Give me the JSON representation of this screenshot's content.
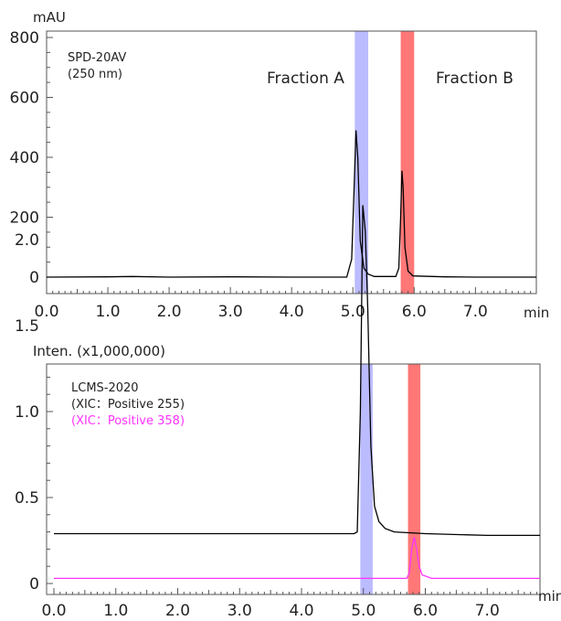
{
  "colors": {
    "trace": "#000000",
    "trace_358": "#ff33ff",
    "fraction_a": "#aaaaff",
    "fraction_b": "#ff5555"
  },
  "chart_data": [
    {
      "type": "line",
      "ylabel": "mAU",
      "xlabel": "min",
      "instrument": "SPD-20AV",
      "wavelength": "(250 nm)",
      "xlim": [
        0,
        8.0
      ],
      "ylim": [
        -50,
        830
      ],
      "x_ticks": [
        "0.0",
        "1.0",
        "2.0",
        "3.0",
        "4.0",
        "5.0",
        "6.0",
        "7.0"
      ],
      "y_ticks": [
        "0",
        "200",
        "400",
        "600",
        "800"
      ],
      "fractions": [
        {
          "label": "Fraction A",
          "start": 5.03,
          "end": 5.25
        },
        {
          "label": "Fraction B",
          "start": 5.78,
          "end": 6.0
        }
      ],
      "series": [
        {
          "x": [
            0,
            1.0,
            1.4,
            2.0,
            3.0,
            4.0,
            4.9,
            4.98,
            5.02,
            5.05,
            5.08,
            5.12,
            5.18,
            5.25,
            5.35,
            5.7,
            5.75,
            5.78,
            5.8,
            5.82,
            5.85,
            5.9,
            5.98,
            6.5,
            7.0,
            8.0
          ],
          "y": [
            0,
            1,
            2,
            0,
            1,
            0,
            0,
            60,
            300,
            490,
            400,
            120,
            30,
            10,
            2,
            2,
            30,
            200,
            355,
            300,
            100,
            20,
            4,
            1,
            0,
            0
          ]
        }
      ]
    },
    {
      "type": "line",
      "ylabel": "Inten. (x1,000,000)",
      "xlabel": "min",
      "instrument": "LCMS-2020",
      "xlim": [
        0,
        8.0
      ],
      "ylim": [
        -0.1,
        2.55
      ],
      "x_ticks": [
        "0.0",
        "1.0",
        "2.0",
        "3.0",
        "4.0",
        "5.0",
        "6.0",
        "7.0"
      ],
      "y_ticks": [
        "0",
        "0.5",
        "1.0",
        "1.5",
        "2.0"
      ],
      "fractions": [
        {
          "label": "Fraction A",
          "start": 4.95,
          "end": 5.15
        },
        {
          "label": "Fraction B",
          "start": 5.72,
          "end": 5.92
        }
      ],
      "series": [
        {
          "name": "(XIC：Positive 255)",
          "x": [
            0,
            1,
            2,
            3,
            4,
            4.85,
            4.9,
            4.95,
            4.99,
            5.03,
            5.07,
            5.12,
            5.18,
            5.25,
            5.35,
            5.5,
            6.0,
            7.0,
            8.0
          ],
          "y": [
            0.29,
            0.29,
            0.29,
            0.29,
            0.29,
            0.29,
            0.3,
            1.0,
            2.2,
            2.05,
            1.6,
            0.8,
            0.45,
            0.36,
            0.32,
            0.3,
            0.29,
            0.28,
            0.28
          ]
        },
        {
          "name": "(XIC：Positive 358)",
          "x": [
            0,
            1,
            2,
            3,
            4,
            5,
            5.7,
            5.74,
            5.78,
            5.82,
            5.86,
            5.9,
            5.95,
            6.1,
            7.0,
            8.0
          ],
          "y": [
            0.03,
            0.03,
            0.03,
            0.03,
            0.03,
            0.03,
            0.03,
            0.06,
            0.2,
            0.27,
            0.2,
            0.1,
            0.05,
            0.03,
            0.03,
            0.03
          ]
        }
      ]
    }
  ]
}
